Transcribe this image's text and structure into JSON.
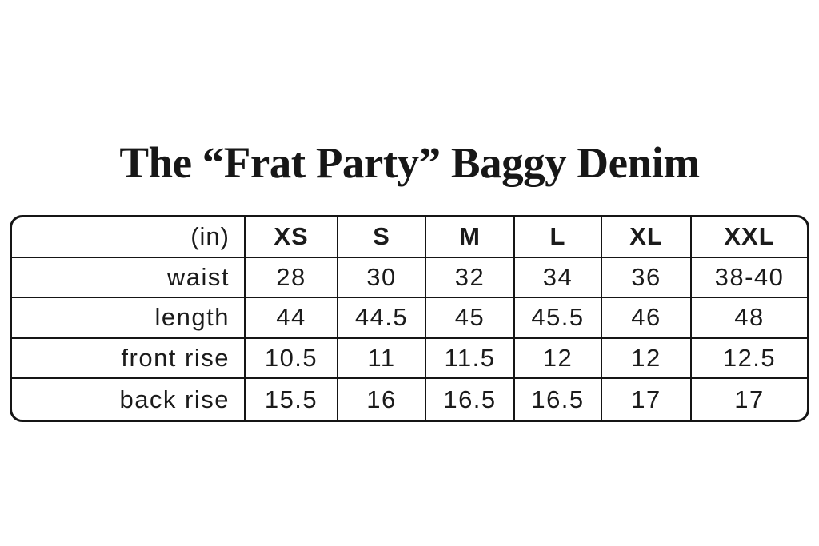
{
  "chart_data": {
    "type": "table",
    "title": "The “Frat Party” Baggy Denim",
    "unit_label": "(in)",
    "columns": [
      "XS",
      "S",
      "M",
      "L",
      "XL",
      "XXL"
    ],
    "rows": [
      {
        "label": "waist",
        "values": [
          "28",
          "30",
          "32",
          "34",
          "36",
          "38-40"
        ]
      },
      {
        "label": "length",
        "values": [
          "44",
          "44.5",
          "45",
          "45.5",
          "46",
          "48"
        ]
      },
      {
        "label": "front rise",
        "values": [
          "10.5",
          "11",
          "11.5",
          "12",
          "12",
          "12.5"
        ]
      },
      {
        "label": "back rise",
        "values": [
          "15.5",
          "16",
          "16.5",
          "16.5",
          "17",
          "17"
        ]
      }
    ],
    "layout": {
      "header_row": true,
      "row_labels_aligned": "right",
      "values_aligned": "center",
      "outer_corners": "rounded"
    }
  },
  "colors": {
    "background": "#ffffff",
    "text": "#1b1b1b",
    "border": "#151515"
  }
}
